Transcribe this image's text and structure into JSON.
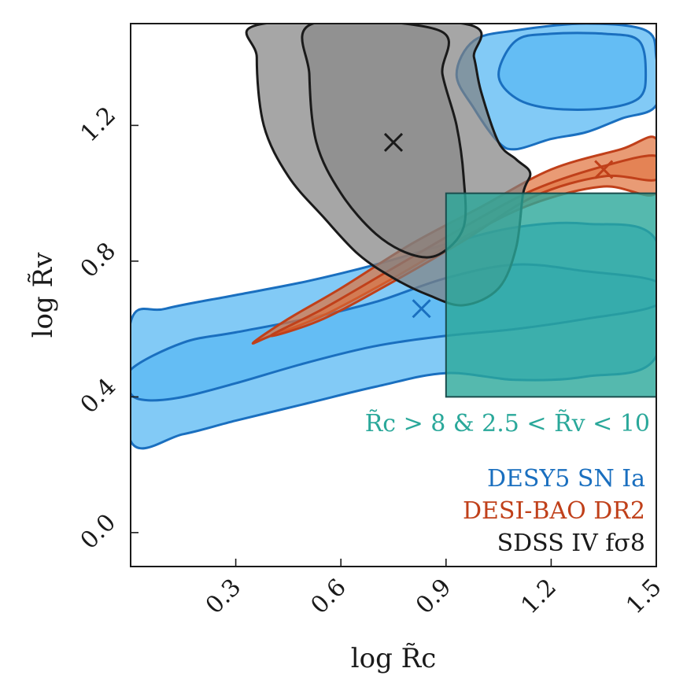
{
  "chart_data": {
    "type": "contour",
    "xlabel": "log R̃c",
    "ylabel": "log R̃v",
    "xlim": [
      0.0,
      1.5
    ],
    "ylim": [
      -0.1,
      1.5
    ],
    "xticks": [
      {
        "value": 0.3,
        "label": "0.3"
      },
      {
        "value": 0.6,
        "label": "0.6"
      },
      {
        "value": 0.9,
        "label": "0.9"
      },
      {
        "value": 1.2,
        "label": "1.2"
      },
      {
        "value": 1.5,
        "label": "1.5"
      }
    ],
    "yticks": [
      {
        "value": 0.0,
        "label": "0.0"
      },
      {
        "value": 0.4,
        "label": "0.4"
      },
      {
        "value": 0.8,
        "label": "0.8"
      },
      {
        "value": 1.2,
        "label": "1.2"
      }
    ],
    "series": [
      {
        "name": "DESY5 SN Ia",
        "color": "#1a6fbf",
        "fill": "#4db3f2",
        "best_fit": [
          0.83,
          0.66
        ],
        "outer": [
          [
            0.0,
            0.62
          ],
          [
            0.1,
            0.66
          ],
          [
            0.3,
            0.7
          ],
          [
            0.5,
            0.74
          ],
          [
            0.7,
            0.79
          ],
          [
            0.9,
            0.85
          ],
          [
            1.1,
            0.9
          ],
          [
            1.3,
            0.91
          ],
          [
            1.5,
            0.86
          ],
          [
            1.5,
            0.52
          ],
          [
            1.3,
            0.46
          ],
          [
            1.1,
            0.45
          ],
          [
            0.9,
            0.47
          ],
          [
            0.7,
            0.43
          ],
          [
            0.5,
            0.38
          ],
          [
            0.3,
            0.33
          ],
          [
            0.15,
            0.29
          ],
          [
            0.0,
            0.27
          ]
        ],
        "inner": [
          [
            0.0,
            0.48
          ],
          [
            0.15,
            0.56
          ],
          [
            0.3,
            0.59
          ],
          [
            0.5,
            0.63
          ],
          [
            0.7,
            0.68
          ],
          [
            0.9,
            0.75
          ],
          [
            1.1,
            0.79
          ],
          [
            1.3,
            0.77
          ],
          [
            1.5,
            0.74
          ],
          [
            1.5,
            0.67
          ],
          [
            1.3,
            0.63
          ],
          [
            1.1,
            0.6
          ],
          [
            0.9,
            0.58
          ],
          [
            0.7,
            0.55
          ],
          [
            0.5,
            0.5
          ],
          [
            0.3,
            0.44
          ],
          [
            0.15,
            0.4
          ],
          [
            0.05,
            0.39
          ],
          [
            0.0,
            0.41
          ]
        ],
        "upper_outer": [
          [
            0.93,
            1.35
          ],
          [
            0.98,
            1.45
          ],
          [
            1.1,
            1.48
          ],
          [
            1.3,
            1.5
          ],
          [
            1.47,
            1.48
          ],
          [
            1.5,
            1.4
          ],
          [
            1.5,
            1.26
          ],
          [
            1.4,
            1.22
          ],
          [
            1.3,
            1.18
          ],
          [
            1.2,
            1.16
          ],
          [
            1.1,
            1.13
          ],
          [
            1.05,
            1.15
          ],
          [
            0.98,
            1.25
          ]
        ],
        "upper_inner": [
          [
            1.05,
            1.35
          ],
          [
            1.1,
            1.45
          ],
          [
            1.2,
            1.47
          ],
          [
            1.35,
            1.47
          ],
          [
            1.45,
            1.45
          ],
          [
            1.47,
            1.35
          ],
          [
            1.45,
            1.28
          ],
          [
            1.35,
            1.25
          ],
          [
            1.2,
            1.25
          ],
          [
            1.1,
            1.28
          ]
        ]
      },
      {
        "name": "DESI-BAO DR2",
        "color": "#c0401a",
        "fill": "#e0703a",
        "best_fit": [
          1.35,
          1.07
        ],
        "outer": [
          [
            0.35,
            0.56
          ],
          [
            0.45,
            0.63
          ],
          [
            0.6,
            0.72
          ],
          [
            0.8,
            0.85
          ],
          [
            1.0,
            0.96
          ],
          [
            1.2,
            1.07
          ],
          [
            1.4,
            1.13
          ],
          [
            1.5,
            1.16
          ],
          [
            1.5,
            1.0
          ],
          [
            1.35,
            1.02
          ],
          [
            1.15,
            0.97
          ],
          [
            0.95,
            0.87
          ],
          [
            0.75,
            0.75
          ],
          [
            0.55,
            0.64
          ],
          [
            0.4,
            0.58
          ]
        ],
        "inner": [
          [
            0.4,
            0.58
          ],
          [
            0.55,
            0.66
          ],
          [
            0.75,
            0.78
          ],
          [
            0.95,
            0.9
          ],
          [
            1.15,
            1.01
          ],
          [
            1.35,
            1.08
          ],
          [
            1.5,
            1.11
          ],
          [
            1.5,
            1.04
          ],
          [
            1.35,
            1.05
          ],
          [
            1.15,
            0.99
          ],
          [
            0.95,
            0.86
          ],
          [
            0.75,
            0.74
          ],
          [
            0.55,
            0.63
          ]
        ]
      },
      {
        "name": "SDSS IV fσ8",
        "color": "#1a1a1a",
        "fill": "#808080",
        "best_fit": [
          0.75,
          1.15
        ],
        "outer": [
          [
            0.38,
            1.5
          ],
          [
            0.36,
            1.4
          ],
          [
            0.38,
            1.2
          ],
          [
            0.45,
            1.05
          ],
          [
            0.55,
            0.93
          ],
          [
            0.65,
            0.82
          ],
          [
            0.75,
            0.75
          ],
          [
            0.85,
            0.7
          ],
          [
            0.95,
            0.67
          ],
          [
            1.05,
            0.72
          ],
          [
            1.1,
            0.84
          ],
          [
            1.12,
            1.0
          ],
          [
            1.14,
            1.06
          ],
          [
            1.1,
            1.1
          ],
          [
            1.05,
            1.15
          ],
          [
            1.0,
            1.3
          ],
          [
            0.98,
            1.4
          ],
          [
            0.95,
            1.5
          ]
        ],
        "inner": [
          [
            0.52,
            1.5
          ],
          [
            0.51,
            1.35
          ],
          [
            0.53,
            1.15
          ],
          [
            0.6,
            1.0
          ],
          [
            0.7,
            0.88
          ],
          [
            0.8,
            0.82
          ],
          [
            0.88,
            0.82
          ],
          [
            0.95,
            0.9
          ],
          [
            0.95,
            1.05
          ],
          [
            0.93,
            1.2
          ],
          [
            0.89,
            1.35
          ],
          [
            0.88,
            1.48
          ]
        ]
      }
    ],
    "region": {
      "label": "R̃c > 8 & 2.5 < R̃v < 10",
      "color": "#2aa89a",
      "x": [
        0.9,
        1.5
      ],
      "y": [
        0.4,
        1.0
      ]
    },
    "legend": {
      "position": "bottom-right",
      "entries": [
        {
          "label": "DESY5 SN Ia",
          "color": "#1a6fbf"
        },
        {
          "label": "DESI-BAO DR2",
          "color": "#c0401a"
        },
        {
          "label": "SDSS IV fσ8",
          "color": "#1a1a1a"
        }
      ]
    }
  }
}
